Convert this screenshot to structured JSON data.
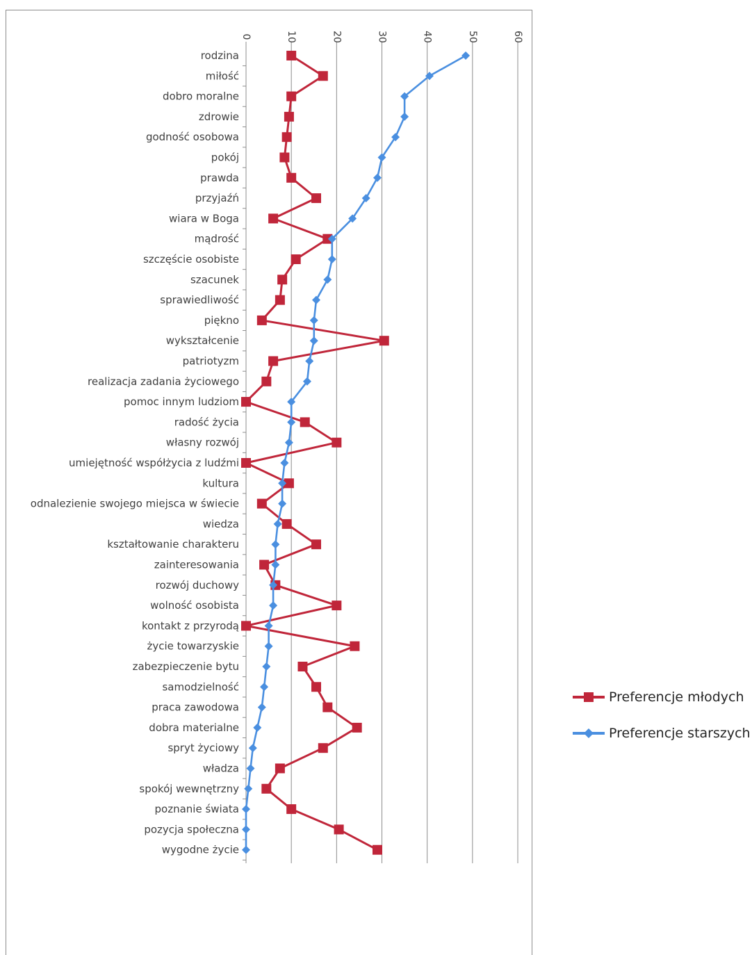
{
  "chart_data": {
    "type": "line",
    "orientation": "vertical-categories",
    "categories": [
      "rodzina",
      "miłość",
      "dobro moralne",
      "zdrowie",
      "godność osobowa",
      "pokój",
      "prawda",
      "przyjaźń",
      "wiara w Boga",
      "mądrość",
      "szczęście osobiste",
      "szacunek",
      "sprawiedliwość",
      "piękno",
      "wykształcenie",
      "patriotyzm",
      "realizacja zadania życiowego",
      "pomoc innym ludziom",
      "radość życia",
      "własny rozwój",
      "umiejętność współżycia z ludźmi",
      "kultura",
      "odnalezienie swojego miejsca w świecie",
      "wiedza",
      "kształtowanie charakteru",
      "zainteresowania",
      "rozwój duchowy",
      "wolność osobista",
      "kontakt z przyrodą",
      "życie towarzyskie",
      "zabezpieczenie bytu",
      "samodzielność",
      "praca zawodowa",
      "dobra materialne",
      "spryt życiowy",
      "władza",
      "spokój wewnętrzny",
      "poznanie świata",
      "pozycja społeczna",
      "wygodne życie"
    ],
    "series": [
      {
        "name": "Preferencje młodych",
        "color": "#c0263a",
        "marker": "square",
        "values": [
          10,
          17,
          10,
          9.5,
          9,
          8.5,
          10,
          15.5,
          6,
          18,
          11,
          8,
          7.5,
          3.5,
          30.5,
          6,
          4.5,
          0,
          13,
          20,
          0,
          9.5,
          3.5,
          9,
          15.5,
          4,
          6.5,
          20,
          0,
          24,
          12.5,
          15.5,
          18,
          24.5,
          17,
          7.5,
          4.5,
          10,
          20.5,
          29
        ]
      },
      {
        "name": "Preferencje starszych",
        "color": "#4a8fe0",
        "marker": "diamond",
        "values": [
          48.5,
          40.5,
          35,
          35,
          33,
          30,
          29,
          26.5,
          23.5,
          19,
          19,
          18,
          15.5,
          15,
          15,
          14,
          13.5,
          10,
          10,
          9.5,
          8.5,
          8,
          8,
          7,
          6.5,
          6.5,
          6,
          6,
          5,
          5,
          4.5,
          4,
          3.5,
          2.5,
          1.5,
          1,
          0.5,
          0,
          0,
          0
        ]
      }
    ],
    "value_axis": {
      "min": 0,
      "max": 60,
      "ticks": [
        "0",
        "10",
        "20",
        "30",
        "40",
        "50",
        "60"
      ]
    },
    "grid": true,
    "legend_position": "right"
  }
}
